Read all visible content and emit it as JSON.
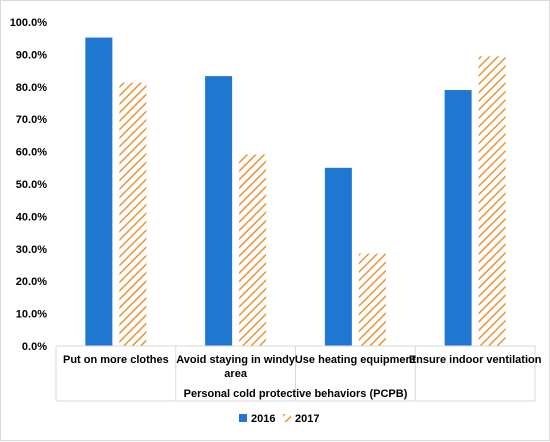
{
  "chart_data": {
    "type": "bar",
    "title": "",
    "xlabel": "Personal cold protective behaviors (PCPB)",
    "ylabel": "",
    "categories": [
      "Put on more clothes",
      "Avoid staying in windy area",
      "Use heating equipment",
      "Ensure indoor ventilation"
    ],
    "category_lines": [
      [
        "Put on more clothes"
      ],
      [
        "Avoid staying in windy",
        "area"
      ],
      [
        "Use heating equipment"
      ],
      [
        "Ensure indoor ventilation"
      ]
    ],
    "series": [
      {
        "name": "2016",
        "values": [
          95.2,
          83.3,
          55.0,
          79.0
        ],
        "color": "#1f77d1",
        "pattern": "solid"
      },
      {
        "name": "2017",
        "values": [
          81.3,
          59.1,
          28.5,
          89.4
        ],
        "color": "#e8943a",
        "pattern": "diagonal-hatch"
      }
    ],
    "ylim": [
      0,
      100
    ],
    "yticks": [
      0,
      10,
      20,
      30,
      40,
      50,
      60,
      70,
      80,
      90,
      100
    ],
    "ytick_labels": [
      "0.0%",
      "10.0%",
      "20.0%",
      "30.0%",
      "40.0%",
      "50.0%",
      "60.0%",
      "70.0%",
      "80.0%",
      "90.0%",
      "100.0%"
    ],
    "grid": false,
    "legend_position": "bottom"
  }
}
